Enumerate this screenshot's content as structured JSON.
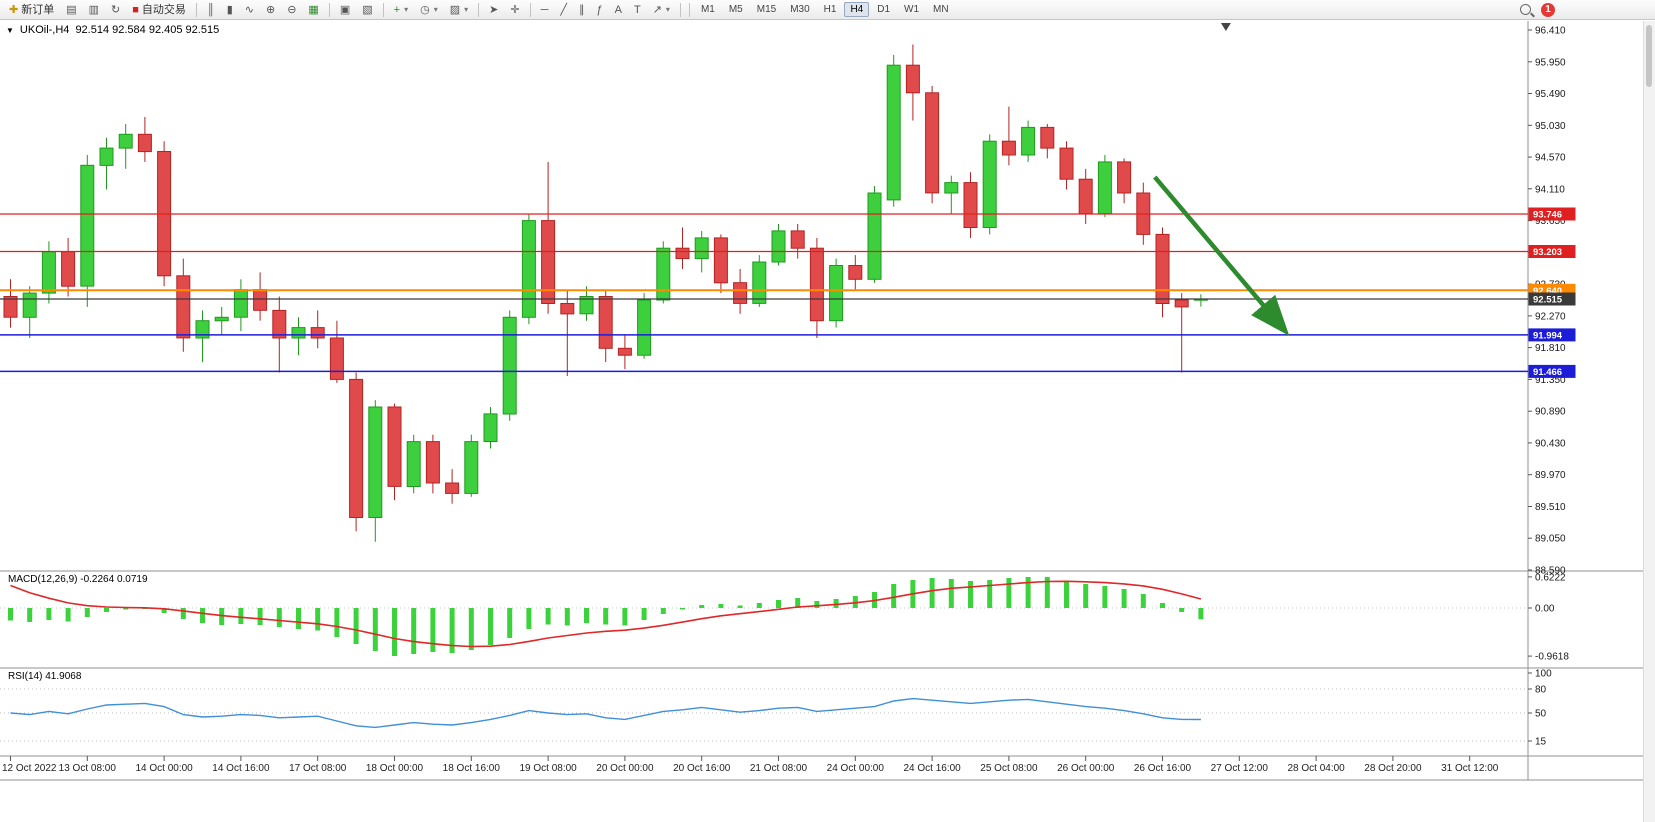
{
  "toolbar": {
    "items": [
      {
        "name": "new-order-button",
        "label": "新订单",
        "glyph": "✚",
        "glyph_color": "#c8960c"
      },
      {
        "name": "market-watch-icon",
        "glyph": "▤"
      },
      {
        "name": "data-window-icon",
        "glyph": "▥"
      },
      {
        "name": "refresh-icon",
        "glyph": "↻"
      },
      {
        "name": "autotrading-button",
        "label": "自动交易",
        "glyph": "■",
        "glyph_color": "#d42222"
      },
      {
        "type": "sep"
      },
      {
        "name": "bars-chart-icon",
        "glyph": "║"
      },
      {
        "name": "candles-chart-icon",
        "glyph": "▮"
      },
      {
        "name": "line-chart-icon",
        "glyph": "∿"
      },
      {
        "name": "zoom-in-button",
        "glyph": "⊕"
      },
      {
        "name": "zoom-out-button",
        "glyph": "⊖"
      },
      {
        "name": "grid-icon",
        "glyph": "▦",
        "glyph_color": "#2a8a2a"
      },
      {
        "type": "sep"
      },
      {
        "name": "tile-windows-icon",
        "glyph": "▣"
      },
      {
        "name": "cascade-windows-icon",
        "glyph": "▧"
      },
      {
        "type": "sep"
      },
      {
        "name": "add-indicator-button",
        "glyph": "+",
        "glyph_color": "#1f8f1f",
        "caret": true
      },
      {
        "name": "period-icon",
        "glyph": "◷",
        "caret": true
      },
      {
        "name": "template-icon",
        "glyph": "▨",
        "caret": true
      },
      {
        "type": "sep"
      },
      {
        "name": "cursor-tool",
        "glyph": "➤"
      },
      {
        "name": "crosshair-tool",
        "glyph": "✛"
      },
      {
        "type": "sep"
      },
      {
        "name": "hline-tool",
        "glyph": "─"
      },
      {
        "name": "trendline-tool",
        "glyph": "╱"
      },
      {
        "name": "channel-tool",
        "glyph": "∥"
      },
      {
        "name": "fibonacci-tool",
        "glyph": "ƒ"
      },
      {
        "name": "text-tool",
        "glyph": "A"
      },
      {
        "name": "label-tool",
        "glyph": "T"
      },
      {
        "name": "arrows-tool",
        "glyph": "↗",
        "caret": true
      },
      {
        "type": "sep"
      }
    ],
    "timeframes": [
      "M1",
      "M5",
      "M15",
      "M30",
      "H1",
      "H4",
      "D1",
      "W1",
      "MN"
    ],
    "active_timeframe": "H4",
    "notification_count": "1"
  },
  "chart": {
    "symbol_label": "UKOil-,H4",
    "ohlc_text": "92.514 92.584 92.405 92.515",
    "macd_label": "MACD(12,26,9) -0.2264 0.0719",
    "rsi_label": "RSI(14) 41.9068"
  },
  "colors": {
    "up": "#3ecf3e",
    "up_border": "#1f9a1f",
    "down": "#e14a4a",
    "down_border": "#b52222",
    "macd_bar": "#3bd23b",
    "macd_signal": "#e02828",
    "rsi_line": "#3f8fd9",
    "arrow": "#2d8a2d",
    "axis_text": "#1a1a1a",
    "panel_border": "#909090"
  },
  "chart_data": {
    "type": "candlestick",
    "symbol": "UKOil-",
    "timeframe": "H4",
    "ylim": [
      88.59,
      96.41
    ],
    "price_axis_labels": [
      "96.410",
      "95.950",
      "95.490",
      "95.030",
      "94.570",
      "94.110",
      "93.650",
      "93.190",
      "92.730",
      "92.270",
      "91.810",
      "91.350",
      "90.890",
      "90.430",
      "89.970",
      "89.510",
      "89.050",
      "88.590"
    ],
    "time_labels": [
      "12 Oct 2022",
      "13 Oct 08:00",
      "14 Oct 00:00",
      "14 Oct 16:00",
      "17 Oct 08:00",
      "18 Oct 00:00",
      "18 Oct 16:00",
      "19 Oct 08:00",
      "20 Oct 00:00",
      "20 Oct 16:00",
      "21 Oct 08:00",
      "24 Oct 00:00",
      "24 Oct 16:00",
      "25 Oct 08:00",
      "26 Oct 00:00",
      "26 Oct 16:00",
      "27 Oct 12:00",
      "28 Oct 04:00",
      "28 Oct 20:00",
      "31 Oct 12:00"
    ],
    "candles": [
      [
        92.55,
        92.8,
        92.1,
        92.25
      ],
      [
        92.25,
        92.7,
        91.95,
        92.6
      ],
      [
        92.6,
        93.35,
        92.45,
        93.2
      ],
      [
        93.2,
        93.4,
        92.55,
        92.7
      ],
      [
        92.7,
        94.6,
        92.4,
        94.45
      ],
      [
        94.45,
        94.85,
        94.1,
        94.7
      ],
      [
        94.7,
        95.05,
        94.4,
        94.9
      ],
      [
        94.9,
        95.15,
        94.5,
        94.65
      ],
      [
        94.65,
        94.8,
        92.7,
        92.85
      ],
      [
        92.85,
        93.1,
        91.75,
        91.95
      ],
      [
        91.95,
        92.35,
        91.6,
        92.2
      ],
      [
        92.2,
        92.4,
        92.0,
        92.25
      ],
      [
        92.25,
        92.8,
        92.05,
        92.65
      ],
      [
        92.65,
        92.9,
        92.2,
        92.35
      ],
      [
        92.35,
        92.55,
        91.45,
        91.95
      ],
      [
        91.95,
        92.25,
        91.7,
        92.1
      ],
      [
        92.1,
        92.35,
        91.8,
        91.95
      ],
      [
        91.95,
        92.2,
        91.3,
        91.35
      ],
      [
        91.35,
        91.45,
        89.15,
        89.35
      ],
      [
        89.35,
        91.05,
        89.0,
        90.95
      ],
      [
        90.95,
        91.0,
        89.6,
        89.8
      ],
      [
        89.8,
        90.55,
        89.7,
        90.45
      ],
      [
        90.45,
        90.55,
        89.7,
        89.85
      ],
      [
        89.85,
        90.05,
        89.55,
        89.7
      ],
      [
        89.7,
        90.55,
        89.65,
        90.45
      ],
      [
        90.45,
        90.95,
        90.35,
        90.85
      ],
      [
        90.85,
        92.35,
        90.75,
        92.25
      ],
      [
        92.25,
        93.75,
        92.15,
        93.65
      ],
      [
        93.65,
        94.5,
        92.3,
        92.45
      ],
      [
        92.45,
        92.65,
        91.4,
        92.3
      ],
      [
        92.3,
        92.7,
        92.2,
        92.55
      ],
      [
        92.55,
        92.65,
        91.6,
        91.8
      ],
      [
        91.8,
        92.0,
        91.5,
        91.7
      ],
      [
        91.7,
        92.6,
        91.65,
        92.5
      ],
      [
        92.5,
        93.35,
        92.45,
        93.25
      ],
      [
        93.25,
        93.55,
        92.95,
        93.1
      ],
      [
        93.1,
        93.5,
        92.9,
        93.4
      ],
      [
        93.4,
        93.45,
        92.6,
        92.75
      ],
      [
        92.75,
        92.95,
        92.3,
        92.45
      ],
      [
        92.45,
        93.15,
        92.4,
        93.05
      ],
      [
        93.05,
        93.6,
        93.0,
        93.5
      ],
      [
        93.5,
        93.6,
        93.1,
        93.25
      ],
      [
        93.25,
        93.4,
        91.95,
        92.2
      ],
      [
        92.2,
        93.1,
        92.1,
        93.0
      ],
      [
        93.0,
        93.15,
        92.65,
        92.8
      ],
      [
        92.8,
        94.15,
        92.75,
        94.05
      ],
      [
        93.95,
        96.05,
        93.85,
        95.9
      ],
      [
        95.9,
        96.2,
        95.1,
        95.5
      ],
      [
        95.5,
        95.6,
        93.9,
        94.05
      ],
      [
        94.05,
        94.3,
        93.75,
        94.2
      ],
      [
        94.2,
        94.35,
        93.4,
        93.55
      ],
      [
        93.55,
        94.9,
        93.45,
        94.8
      ],
      [
        94.8,
        95.3,
        94.45,
        94.6
      ],
      [
        94.6,
        95.1,
        94.5,
        95.0
      ],
      [
        95.0,
        95.05,
        94.55,
        94.7
      ],
      [
        94.7,
        94.8,
        94.1,
        94.25
      ],
      [
        94.25,
        94.4,
        93.6,
        93.75
      ],
      [
        93.75,
        94.6,
        93.7,
        94.5
      ],
      [
        94.5,
        94.55,
        93.9,
        94.05
      ],
      [
        94.05,
        94.2,
        93.3,
        93.45
      ],
      [
        93.45,
        93.55,
        92.25,
        92.45
      ],
      [
        92.5,
        92.6,
        91.45,
        92.4
      ],
      [
        92.514,
        92.584,
        92.405,
        92.515
      ]
    ],
    "hlines": [
      {
        "label": "93.746",
        "price": 93.746,
        "color": "#e02020",
        "width": 1.2
      },
      {
        "label": "93.203",
        "price": 93.203,
        "color": "#e02020",
        "width": 1.2
      },
      {
        "label": "92.640",
        "price": 92.64,
        "color": "#ff8a00",
        "width": 2
      },
      {
        "label": "92.515",
        "price": 92.515,
        "color": "#3a3a3a",
        "width": 1.2
      },
      {
        "label": "91.994",
        "price": 91.994,
        "color": "#1d1dd8",
        "width": 1.5
      },
      {
        "label": "91.466",
        "price": 91.466,
        "color": "#1d1dd8",
        "width": 1.5
      }
    ],
    "indicators": [
      {
        "name": "MACD",
        "params": "12,26,9",
        "display": "MACD(12,26,9) -0.2264 0.0719",
        "current_main": -0.2264,
        "current_signal": 0.0719,
        "scale_labels": [
          "0.6222",
          "0.00",
          "-0.9618"
        ],
        "histogram": [
          -0.25,
          -0.28,
          -0.24,
          -0.27,
          -0.18,
          -0.08,
          -0.03,
          -0.02,
          -0.1,
          -0.22,
          -0.3,
          -0.34,
          -0.32,
          -0.34,
          -0.38,
          -0.42,
          -0.45,
          -0.58,
          -0.72,
          -0.86,
          -0.96,
          -0.92,
          -0.88,
          -0.9,
          -0.84,
          -0.74,
          -0.6,
          -0.42,
          -0.33,
          -0.35,
          -0.3,
          -0.33,
          -0.35,
          -0.24,
          -0.12,
          -0.03,
          0.06,
          0.08,
          0.05,
          0.1,
          0.16,
          0.2,
          0.14,
          0.18,
          0.24,
          0.32,
          0.48,
          0.56,
          0.6,
          0.58,
          0.54,
          0.56,
          0.6,
          0.62,
          0.6222,
          0.55,
          0.48,
          0.44,
          0.38,
          0.28,
          0.1,
          -0.08,
          -0.2264
        ]
      },
      {
        "name": "RSI",
        "params": "14",
        "display": "RSI(14) 41.9068",
        "current": 41.9068,
        "scale_labels": [
          "100",
          "80",
          "50",
          "15"
        ],
        "levels": [
          80,
          50,
          15
        ],
        "values": [
          50,
          48,
          52,
          49,
          55,
          60,
          61,
          62,
          58,
          48,
          45,
          46,
          48,
          47,
          44,
          45,
          46,
          40,
          34,
          32,
          35,
          38,
          36,
          35,
          38,
          42,
          47,
          53,
          50,
          48,
          49,
          44,
          42,
          47,
          52,
          54,
          57,
          54,
          51,
          53,
          56,
          57,
          52,
          54,
          56,
          58,
          65,
          68,
          66,
          64,
          62,
          64,
          66,
          67,
          64,
          61,
          58,
          56,
          53,
          49,
          44,
          42,
          41.9068
        ]
      }
    ],
    "annotation": {
      "type": "arrow",
      "from_bar": 59.6,
      "from_price": 94.28,
      "to_bar": 66.3,
      "to_price": 92.08,
      "color": "#2d8a2d"
    }
  }
}
